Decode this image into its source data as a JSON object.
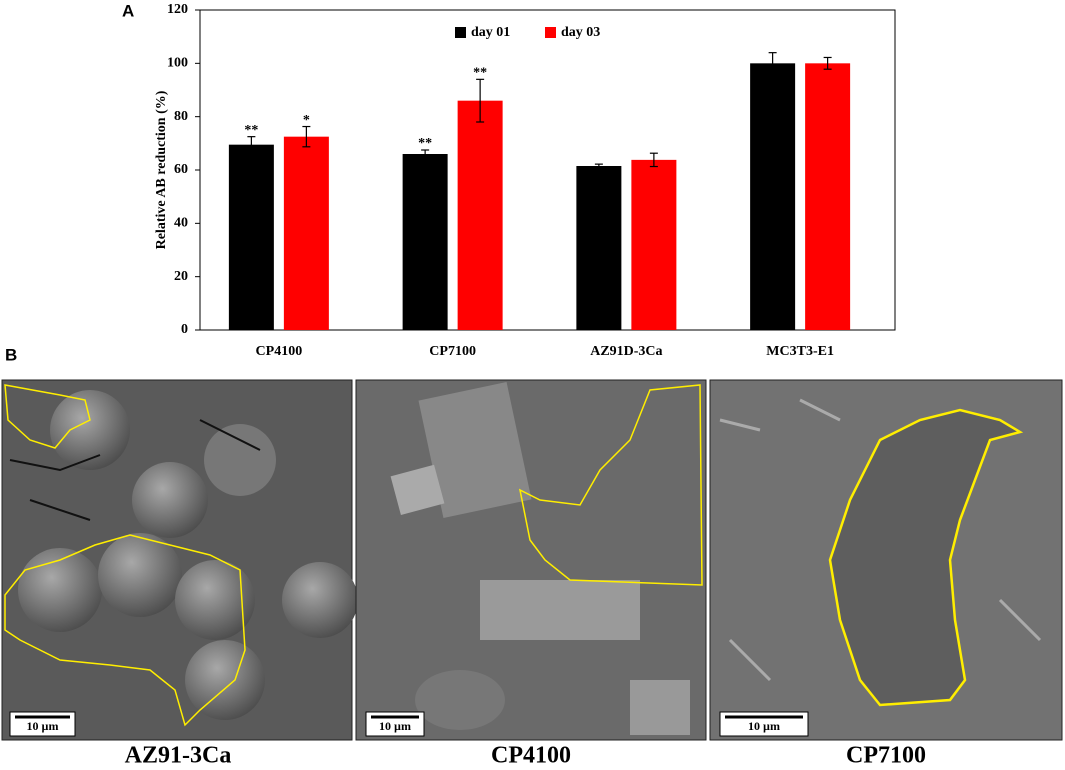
{
  "panel_labels": [
    "A",
    "B"
  ],
  "chart_data": {
    "type": "bar",
    "ylabel": "Relative  AB reduction  (%)",
    "categories": [
      "CP4100",
      "CP7100",
      "AZ91D-3Ca",
      "MC3T3-E1"
    ],
    "series": [
      {
        "name": "day 01",
        "color": "#000000",
        "values": [
          69.5,
          66,
          61.5,
          100
        ],
        "errors": [
          3,
          1.5,
          0.7,
          4
        ]
      },
      {
        "name": "day 03",
        "color": "#ff0000",
        "values": [
          72.5,
          86,
          63.8,
          100
        ],
        "errors": [
          3.8,
          8,
          2.5,
          2.2
        ]
      }
    ],
    "annotations": [
      {
        "text": "**",
        "series": 0,
        "category": 0
      },
      {
        "text": "*",
        "series": 1,
        "category": 0
      },
      {
        "text": "**",
        "series": 0,
        "category": 1
      },
      {
        "text": "**",
        "series": 1,
        "category": 1
      }
    ],
    "ylim": [
      0,
      120
    ],
    "yticks": [
      0,
      20,
      40,
      60,
      80,
      100,
      120
    ],
    "legend": "top"
  },
  "images": [
    {
      "caption": "AZ91-3Ca",
      "scale_bar": "10 µm"
    },
    {
      "caption": "CP4100",
      "scale_bar": "10 µm"
    },
    {
      "caption": "CP7100",
      "scale_bar": "10 µm"
    }
  ]
}
